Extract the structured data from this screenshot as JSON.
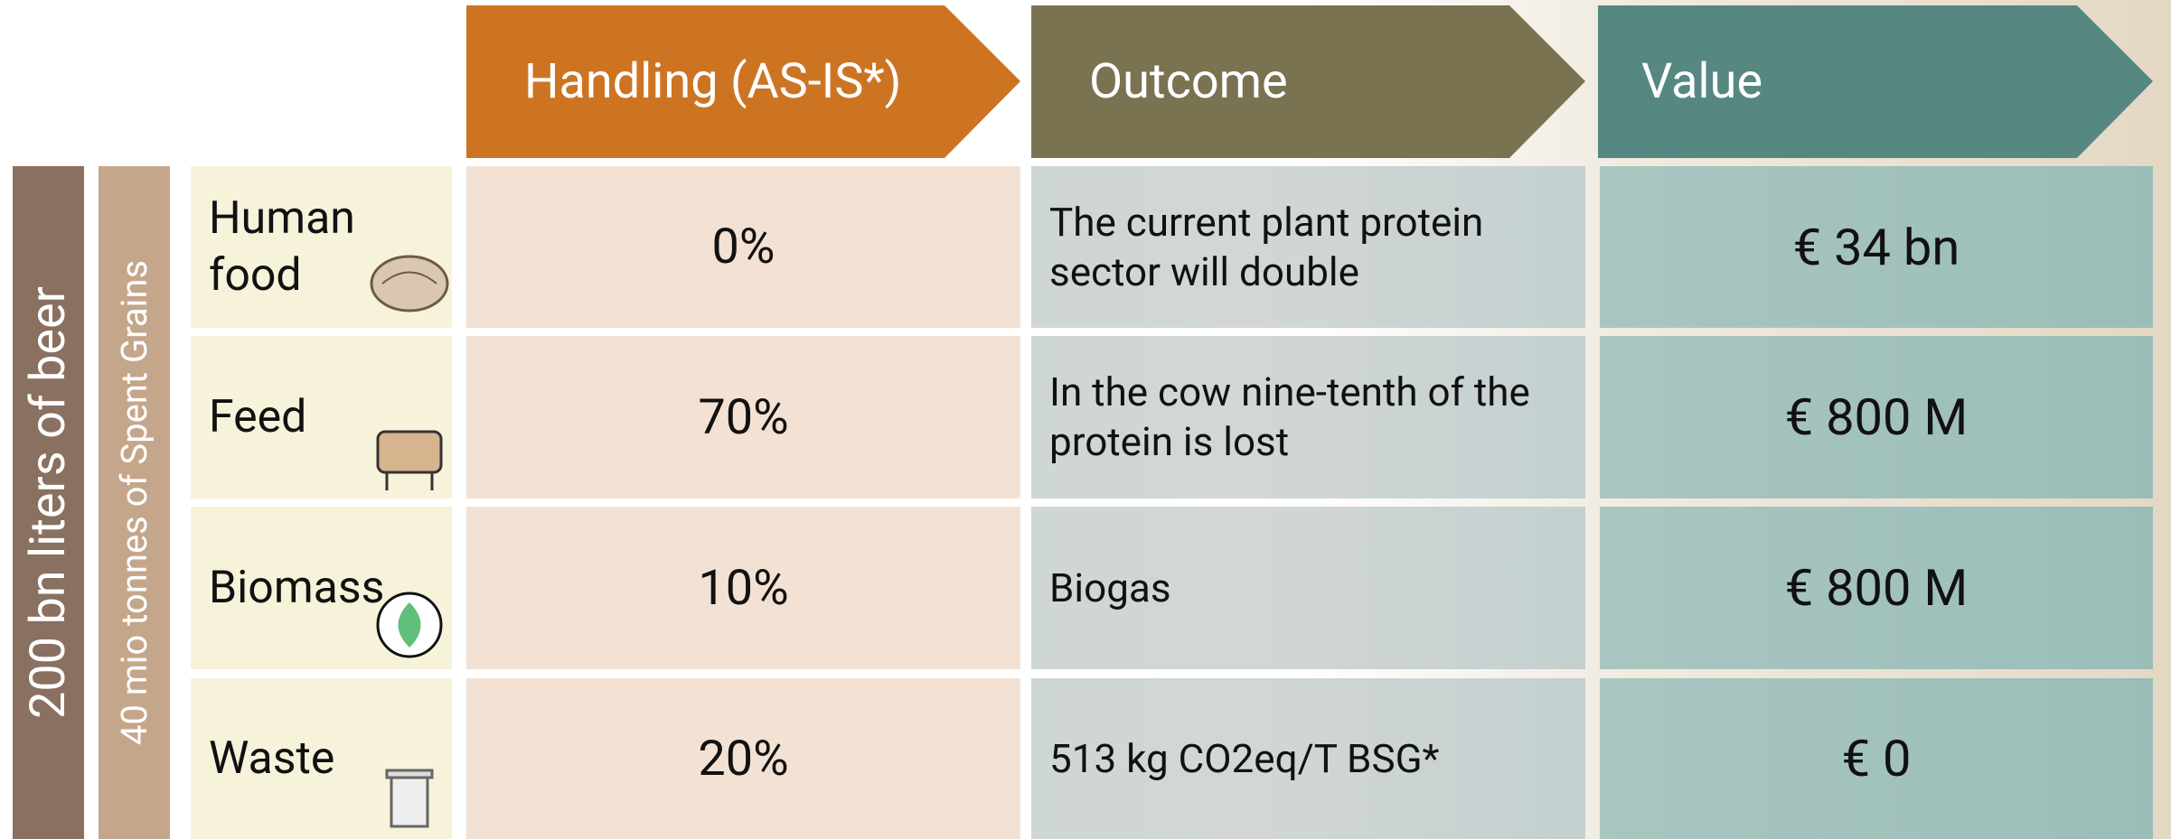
{
  "headers": [
    "Handling (AS-IS*)",
    "Outcome",
    "Value"
  ],
  "side_labels": {
    "outer": "200 bn liters of beer",
    "inner": "40 mio tonnes of Spent Grains"
  },
  "rows": [
    {
      "category": "Human food",
      "handling": "0%",
      "outcome": "The current plant protein sector will double",
      "value": "€  34 bn"
    },
    {
      "category": "Feed",
      "handling": "70%",
      "outcome": "In the cow nine-tenth of the protein is lost",
      "value": "€ 800 M"
    },
    {
      "category": "Biomass",
      "handling": "10%",
      "outcome": "Biogas",
      "value": "€ 800 M"
    },
    {
      "category": "Waste",
      "handling": "20%",
      "outcome": "513 kg CO2eq/T BSG*",
      "value": "€ 0"
    }
  ]
}
